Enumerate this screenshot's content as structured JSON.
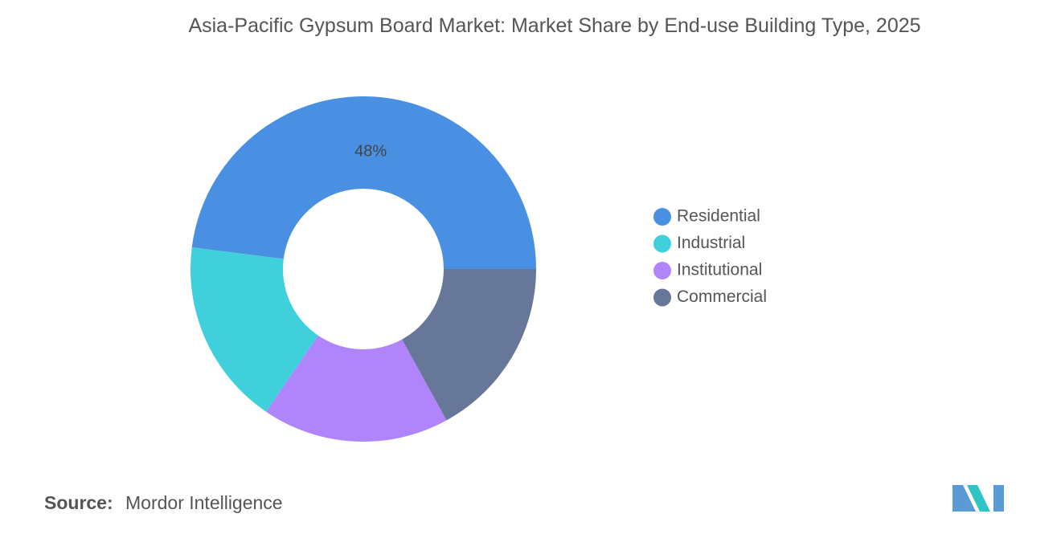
{
  "chart_data": {
    "type": "donut",
    "title": "Asia-Pacific Gypsum Board Market: Market Share by End-use Building Type, 2025",
    "categories": [
      "Residential",
      "Industrial",
      "Institutional",
      "Commercial"
    ],
    "values": [
      48,
      17.5,
      17.5,
      17
    ],
    "value_labels": [
      "48%",
      null,
      null,
      null
    ],
    "colors": [
      "#4a90e2",
      "#40d0dc",
      "#b084fa",
      "#667799"
    ],
    "legend": "right",
    "source_label": "Source:",
    "source": "Mordor Intelligence"
  }
}
